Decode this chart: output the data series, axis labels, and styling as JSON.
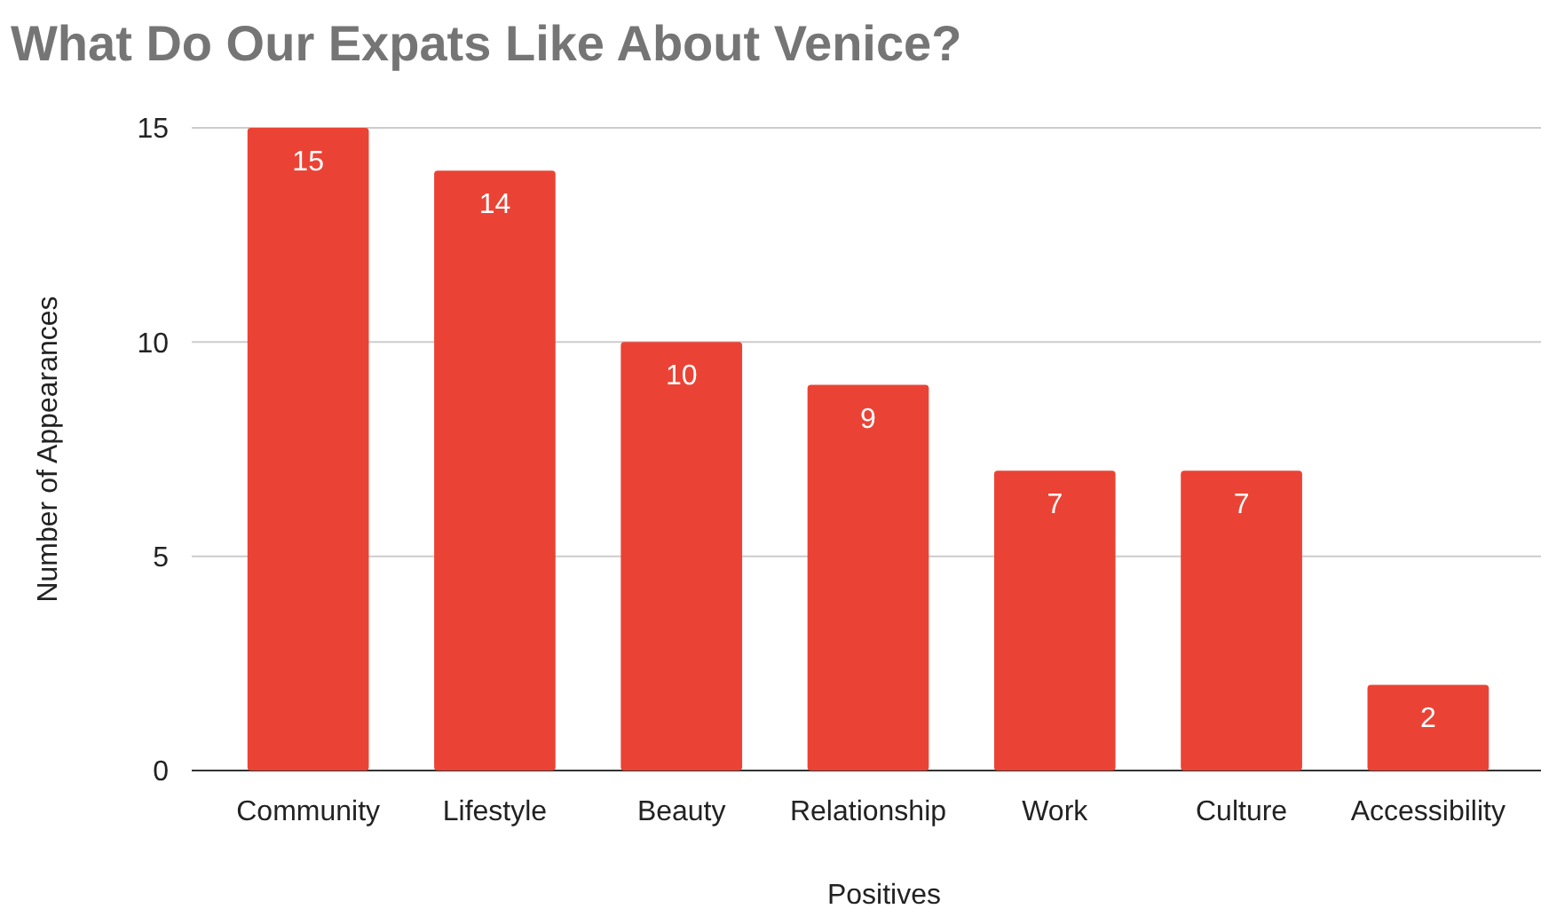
{
  "chart_data": {
    "type": "bar",
    "title": "What Do Our Expats Like About Venice?",
    "xlabel": "Positives",
    "ylabel": "Number of Appearances",
    "categories": [
      "Community",
      "Lifestyle",
      "Beauty",
      "Relationship",
      "Work",
      "Culture",
      "Accessibility"
    ],
    "values": [
      15,
      14,
      10,
      9,
      7,
      7,
      2
    ],
    "color": "#ea4335",
    "ylim": [
      0,
      15
    ],
    "yticks": [
      0,
      5,
      10,
      15
    ],
    "grid": "y",
    "data_labels": true
  }
}
